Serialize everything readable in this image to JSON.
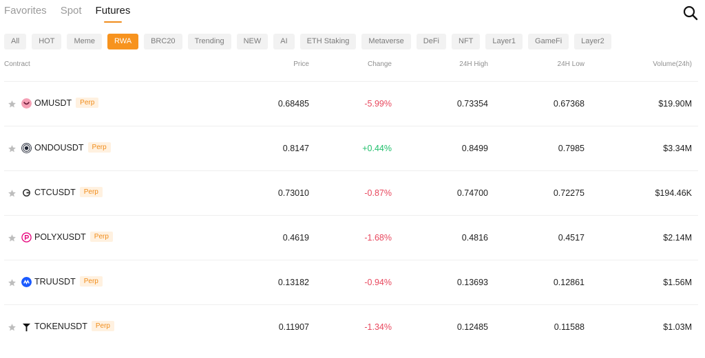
{
  "tabs": [
    {
      "label": "Favorites",
      "active": false
    },
    {
      "label": "Spot",
      "active": false
    },
    {
      "label": "Futures",
      "active": true
    }
  ],
  "search": {
    "icon": "search-icon"
  },
  "categories": [
    {
      "label": "All",
      "active": false
    },
    {
      "label": "HOT",
      "active": false
    },
    {
      "label": "Meme",
      "active": false
    },
    {
      "label": "RWA",
      "active": true
    },
    {
      "label": "BRC20",
      "active": false
    },
    {
      "label": "Trending",
      "active": false
    },
    {
      "label": "NEW",
      "active": false
    },
    {
      "label": "AI",
      "active": false
    },
    {
      "label": "ETH Staking",
      "active": false
    },
    {
      "label": "Metaverse",
      "active": false
    },
    {
      "label": "DeFi",
      "active": false
    },
    {
      "label": "NFT",
      "active": false
    },
    {
      "label": "Layer1",
      "active": false
    },
    {
      "label": "GameFi",
      "active": false
    },
    {
      "label": "Layer2",
      "active": false
    }
  ],
  "columns": {
    "contract": "Contract",
    "price": "Price",
    "change": "Change",
    "high": "24H High",
    "low": "24H Low",
    "volume": "Volume(24h)"
  },
  "colors": {
    "accent": "#f7931e",
    "negative": "#e8475d",
    "positive": "#1fbf6b"
  },
  "rows": [
    {
      "symbol": "OMUSDT",
      "badge": "Perp",
      "icon": "om-coin-icon",
      "icon_color": "#f5a0b5",
      "price": "0.68485",
      "change": "-5.99%",
      "direction": "down",
      "high": "0.73354",
      "low": "0.67368",
      "volume": "$19.90M"
    },
    {
      "symbol": "ONDOUSDT",
      "badge": "Perp",
      "icon": "ondo-coin-icon",
      "icon_color": "#1e2433",
      "price": "0.8147",
      "change": "+0.44%",
      "direction": "up",
      "high": "0.8499",
      "low": "0.7985",
      "volume": "$3.34M"
    },
    {
      "symbol": "CTCUSDT",
      "badge": "Perp",
      "icon": "ctc-coin-icon",
      "icon_color": "#2b2b2b",
      "price": "0.73010",
      "change": "-0.87%",
      "direction": "down",
      "high": "0.74700",
      "low": "0.72275",
      "volume": "$194.46K"
    },
    {
      "symbol": "POLYXUSDT",
      "badge": "Perp",
      "icon": "polyx-coin-icon",
      "icon_color": "#e6007a",
      "price": "0.4619",
      "change": "-1.68%",
      "direction": "down",
      "high": "0.4816",
      "low": "0.4517",
      "volume": "$2.14M"
    },
    {
      "symbol": "TRUUSDT",
      "badge": "Perp",
      "icon": "tru-coin-icon",
      "icon_color": "#1a5aff",
      "price": "0.13182",
      "change": "-0.94%",
      "direction": "down",
      "high": "0.13693",
      "low": "0.12861",
      "volume": "$1.56M"
    },
    {
      "symbol": "TOKENUSDT",
      "badge": "Perp",
      "icon": "token-coin-icon",
      "icon_color": "#111111",
      "price": "0.11907",
      "change": "-1.34%",
      "direction": "down",
      "high": "0.12485",
      "low": "0.11588",
      "volume": "$1.03M"
    }
  ]
}
